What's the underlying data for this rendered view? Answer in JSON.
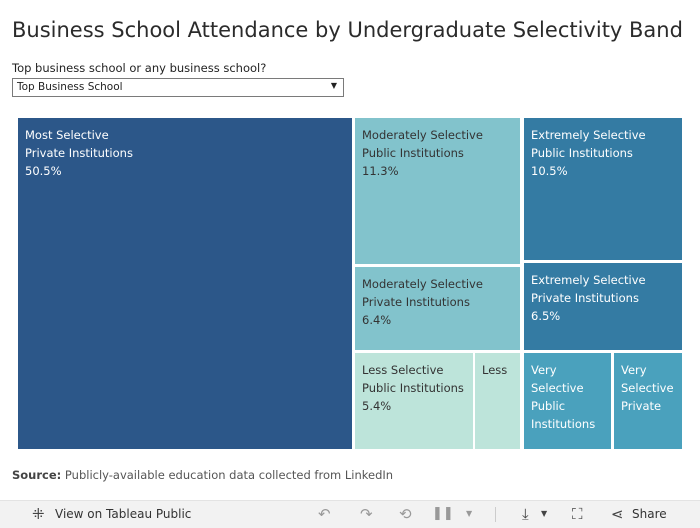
{
  "title": "Business School Attendance by Undergraduate Selectivity Band",
  "filter": {
    "label": "Top business school or any business school?",
    "selected": "Top Business School"
  },
  "source": {
    "prefix": "Source:",
    "text": "Publicly-available education data collected from LinkedIn"
  },
  "colors": {
    "most_selective": "#2c5789",
    "extremely_selective": "#347ba3",
    "very_selective": "#4aa1bd",
    "moderately_selective": "#82c3cc",
    "less_selective": "#bde4da"
  },
  "chart_data": {
    "type": "treemap",
    "title": "Business School Attendance by Undergraduate Selectivity Band",
    "unit": "percent",
    "items": [
      {
        "label": [
          "Most Selective",
          "Private Institutions"
        ],
        "value_text": "50.5%",
        "value": 50.5,
        "band": "most_selective"
      },
      {
        "label": [
          "Moderately Selective",
          "Public Institutions"
        ],
        "value_text": "11.3%",
        "value": 11.3,
        "band": "moderately_selective"
      },
      {
        "label": [
          "Extremely Selective",
          "Public Institutions"
        ],
        "value_text": "10.5%",
        "value": 10.5,
        "band": "extremely_selective"
      },
      {
        "label": [
          "Moderately Selective",
          "Private Institutions"
        ],
        "value_text": "6.4%",
        "value": 6.4,
        "band": "moderately_selective"
      },
      {
        "label": [
          "Extremely Selective",
          "Private Institutions"
        ],
        "value_text": "6.5%",
        "value": 6.5,
        "band": "extremely_selective"
      },
      {
        "label": [
          "Less Selective",
          "Public Institutions"
        ],
        "value_text": "5.4%",
        "value": 5.4,
        "band": "less_selective"
      },
      {
        "label": [
          "Less"
        ],
        "value_text": "",
        "value": null,
        "band": "less_selective"
      },
      {
        "label": [
          "Very",
          "Selective",
          "Public",
          "Institutions"
        ],
        "value_text": "",
        "value": null,
        "band": "very_selective"
      },
      {
        "label": [
          "Very",
          "Selective",
          "Private"
        ],
        "value_text": "",
        "value": null,
        "band": "very_selective"
      }
    ]
  },
  "toolbar": {
    "view_label": "View on Tableau Public",
    "share_label": "Share",
    "icons": {
      "tableau": "tableau-logo-icon",
      "undo": "undo-icon",
      "redo": "redo-icon",
      "revert": "revert-icon",
      "pause": "pause-icon",
      "download": "download-icon",
      "fullscreen": "fullscreen-icon",
      "share": "share-icon"
    }
  }
}
